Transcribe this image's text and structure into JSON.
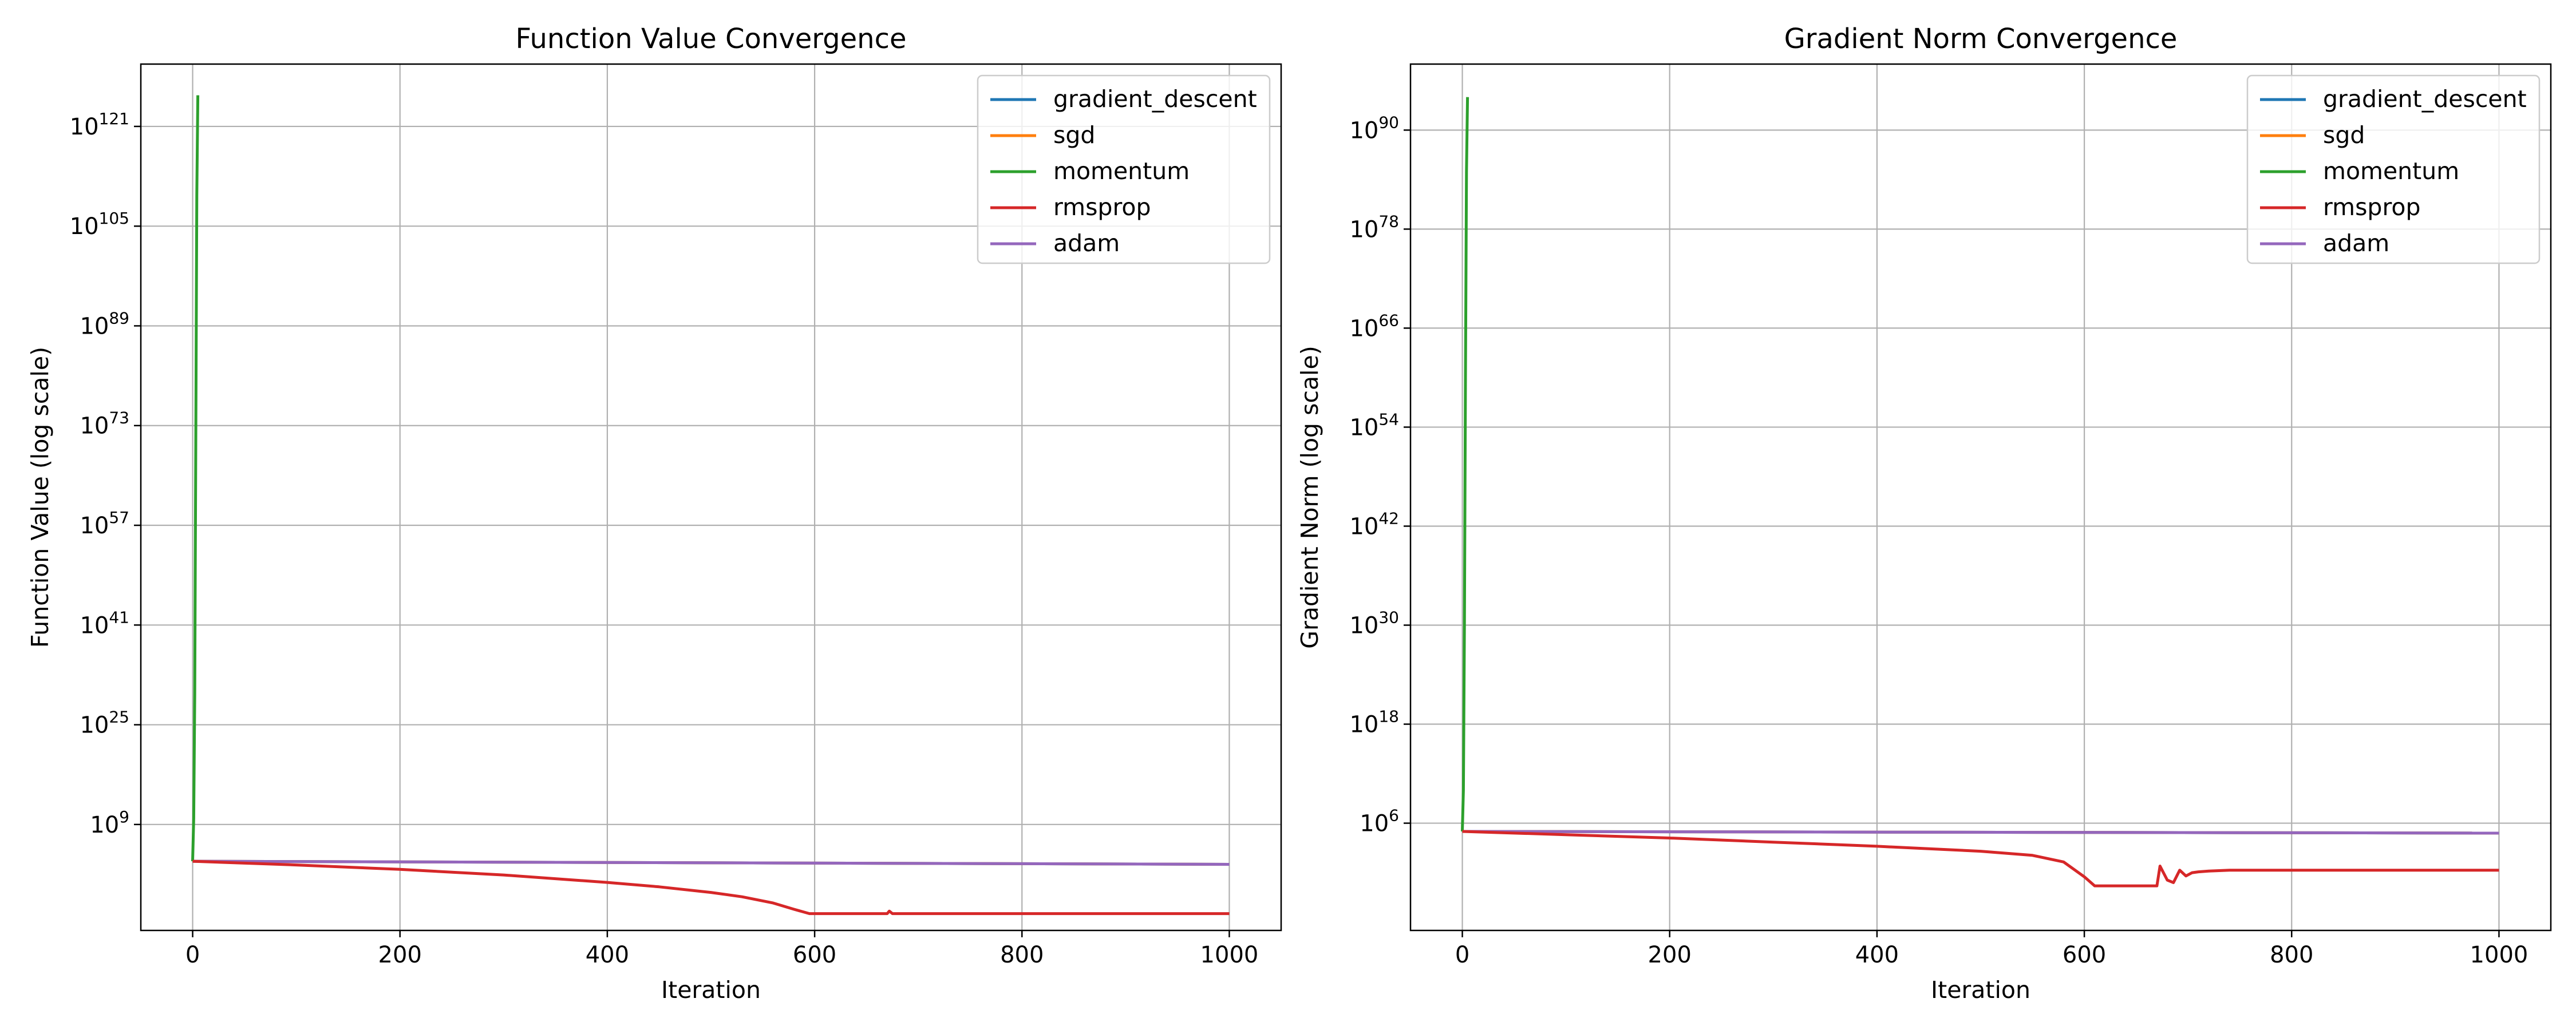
{
  "chart_data": [
    {
      "type": "line",
      "title": "Function Value Convergence",
      "xlabel": "Iteration",
      "ylabel": "Function Value (log scale)",
      "yscale": "log",
      "xlim": [
        -50,
        1050
      ],
      "ylim_log10": [
        -8,
        131
      ],
      "xticks": [
        0,
        200,
        400,
        600,
        800,
        1000
      ],
      "yticks_exp": [
        9,
        25,
        41,
        57,
        73,
        89,
        105,
        121
      ],
      "ytick_base": "10",
      "grid": true,
      "legend_position": "top-right",
      "series": [
        {
          "name": "gradient_descent",
          "color": "#1f77b4",
          "x": [
            0,
            1000
          ],
          "log10_y": [
            3.1,
            2.6
          ]
        },
        {
          "name": "sgd",
          "color": "#ff7f0e",
          "x": [
            0,
            1000
          ],
          "log10_y": [
            3.1,
            2.6
          ]
        },
        {
          "name": "momentum",
          "color": "#2ca02c",
          "x": [
            0,
            1,
            2,
            3,
            4,
            5
          ],
          "log10_y": [
            3.1,
            10,
            30,
            70,
            110,
            126
          ]
        },
        {
          "name": "rmsprop",
          "color": "#d62728",
          "x": [
            0,
            100,
            200,
            300,
            400,
            450,
            500,
            530,
            560,
            580,
            595,
            650,
            670,
            672,
            675,
            700,
            800,
            1000
          ],
          "log10_y": [
            3.1,
            2.5,
            1.8,
            0.9,
            -0.3,
            -1.0,
            -1.9,
            -2.6,
            -3.6,
            -4.6,
            -5.3,
            -5.3,
            -5.3,
            -4.9,
            -5.3,
            -5.3,
            -5.3,
            -5.3
          ]
        },
        {
          "name": "adam",
          "color": "#9467bd",
          "x": [
            0,
            1000
          ],
          "log10_y": [
            3.1,
            2.6
          ]
        }
      ]
    },
    {
      "type": "line",
      "title": "Gradient Norm Convergence",
      "xlabel": "Iteration",
      "ylabel": "Gradient Norm (log scale)",
      "yscale": "log",
      "xlim": [
        -50,
        1050
      ],
      "ylim_log10": [
        -7,
        98
      ],
      "xticks": [
        0,
        200,
        400,
        600,
        800,
        1000
      ],
      "yticks_exp": [
        6,
        18,
        30,
        42,
        54,
        66,
        78,
        90
      ],
      "ytick_base": "10",
      "grid": true,
      "legend_position": "top-right",
      "series": [
        {
          "name": "gradient_descent",
          "color": "#1f77b4",
          "x": [
            0,
            1000
          ],
          "log10_y": [
            5.0,
            4.8
          ]
        },
        {
          "name": "sgd",
          "color": "#ff7f0e",
          "x": [
            0,
            1000
          ],
          "log10_y": [
            5.0,
            4.8
          ]
        },
        {
          "name": "momentum",
          "color": "#2ca02c",
          "x": [
            0,
            1,
            2,
            3,
            4,
            5
          ],
          "log10_y": [
            5.0,
            10,
            30,
            60,
            85,
            94
          ]
        },
        {
          "name": "rmsprop",
          "color": "#d62728",
          "x": [
            0,
            100,
            200,
            300,
            400,
            450,
            500,
            550,
            580,
            600,
            610,
            670,
            673,
            680,
            686,
            692,
            698,
            704,
            710,
            720,
            740,
            800,
            1000
          ],
          "log10_y": [
            5.0,
            4.6,
            4.2,
            3.7,
            3.2,
            2.9,
            2.6,
            2.1,
            1.3,
            -0.5,
            -1.6,
            -1.6,
            0.8,
            -0.9,
            -1.2,
            0.3,
            -0.4,
            0.0,
            0.1,
            0.2,
            0.3,
            0.3,
            0.3
          ]
        },
        {
          "name": "adam",
          "color": "#9467bd",
          "x": [
            0,
            1000
          ],
          "log10_y": [
            5.0,
            4.8
          ]
        }
      ]
    }
  ]
}
